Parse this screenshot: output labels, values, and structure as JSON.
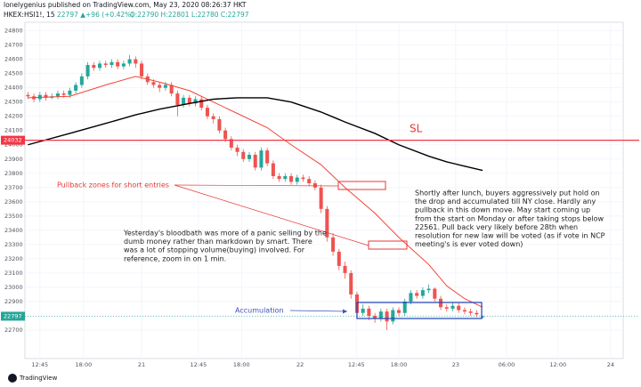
{
  "header": {
    "author": "lonelygenius published on TradingView.com, May 23, 2020 08:26:37 HKT",
    "symbol": "HKEX:HSI1!, 15",
    "change": "22797 ▲+96 (+0.42%)",
    "ohlc": "O:22790 H:22801 L:22780 C:22797"
  },
  "footer": "TradingView",
  "chart_data": {
    "type": "candlestick",
    "up_color": "#26a69a",
    "down_color": "#ef5350",
    "grid": true,
    "xlim": [
      -0.5,
      99.5
    ],
    "ylim": [
      22500,
      24860
    ],
    "xticks": [
      {
        "value": 2,
        "label": "12:45"
      },
      {
        "value": 9.3,
        "label": "18:00"
      },
      {
        "value": 19,
        "label": "21"
      },
      {
        "value": 28.5,
        "label": "12:45"
      },
      {
        "value": 35.7,
        "label": "18:00"
      },
      {
        "value": 45.5,
        "label": "22"
      },
      {
        "value": 54.9,
        "label": "12:45"
      },
      {
        "value": 62,
        "label": "18:00"
      },
      {
        "value": 71.5,
        "label": "23"
      },
      {
        "value": 80,
        "label": "06:00"
      },
      {
        "value": 88.6,
        "label": "12:00"
      },
      {
        "value": 97.4,
        "label": "24"
      }
    ],
    "yticks": [
      22700,
      22800,
      22900,
      23000,
      23100,
      23200,
      23300,
      23400,
      23500,
      23600,
      23700,
      23800,
      23900,
      24000,
      24100,
      24200,
      24300,
      24400,
      24500,
      24600,
      24700,
      24800
    ],
    "open": [
      24350,
      24340,
      24320,
      24350,
      24330,
      24340,
      24360,
      24350,
      24380,
      24420,
      24480,
      24560,
      24540,
      24570,
      24560,
      24580,
      24550,
      24570,
      24600,
      24570,
      24480,
      24440,
      24420,
      24400,
      24420,
      24360,
      24280,
      24330,
      24290,
      24320,
      24260,
      24200,
      24180,
      24100,
      24040,
      23980,
      23950,
      23900,
      23930,
      23840,
      23960,
      23870,
      23780,
      23760,
      23780,
      23740,
      23770,
      23760,
      23730,
      23700,
      23550,
      23350,
      23250,
      23150,
      23100,
      22950,
      22820,
      22850,
      22800,
      22780,
      22830,
      22760,
      22840,
      22820,
      22900,
      22960,
      22940,
      22980,
      22990,
      22920,
      22860,
      22850,
      22870,
      22840,
      22830,
      22820,
      22790
    ],
    "high": [
      24370,
      24360,
      24370,
      24370,
      24360,
      24380,
      24380,
      24400,
      24440,
      24500,
      24580,
      24580,
      24590,
      24590,
      24600,
      24600,
      24590,
      24630,
      24620,
      24590,
      24500,
      24460,
      24440,
      24440,
      24440,
      24380,
      24350,
      24350,
      24340,
      24340,
      24280,
      24220,
      24200,
      24120,
      24060,
      24000,
      23970,
      23950,
      23950,
      23980,
      23980,
      23890,
      23800,
      23800,
      23800,
      23790,
      23790,
      23780,
      23750,
      23720,
      23570,
      23380,
      23270,
      23180,
      23120,
      22970,
      22880,
      22870,
      22820,
      22850,
      22850,
      22860,
      22860,
      22920,
      22980,
      22980,
      23000,
      23020,
      23000,
      22940,
      22880,
      22890,
      22890,
      22860,
      22850,
      22840,
      22801
    ],
    "low": [
      24320,
      24300,
      24300,
      24310,
      24320,
      24320,
      24330,
      24330,
      24360,
      24400,
      24460,
      24520,
      24520,
      24540,
      24540,
      24530,
      24530,
      24550,
      24540,
      24460,
      24420,
      24400,
      24370,
      24380,
      24340,
      24200,
      24260,
      24270,
      24270,
      24240,
      24180,
      24150,
      24080,
      24020,
      23960,
      23920,
      23880,
      23880,
      23820,
      23820,
      23850,
      23760,
      23740,
      23740,
      23720,
      23720,
      23740,
      23710,
      23680,
      23520,
      23320,
      23220,
      23120,
      23060,
      22920,
      22790,
      22800,
      22770,
      22750,
      22760,
      22700,
      22740,
      22800,
      22800,
      22880,
      22920,
      22920,
      22960,
      22900,
      22840,
      22830,
      22830,
      22820,
      22810,
      22800,
      22790,
      22780
    ],
    "close": [
      24340,
      24320,
      24350,
      24330,
      24340,
      24360,
      24350,
      24380,
      24420,
      24480,
      24560,
      24540,
      24570,
      24560,
      24580,
      24550,
      24570,
      24600,
      24570,
      24480,
      24440,
      24420,
      24400,
      24420,
      24360,
      24280,
      24330,
      24290,
      24320,
      24260,
      24200,
      24180,
      24100,
      24040,
      23980,
      23950,
      23900,
      23930,
      23840,
      23960,
      23870,
      23780,
      23760,
      23780,
      23740,
      23770,
      23760,
      23730,
      23700,
      23550,
      23350,
      23250,
      23150,
      23100,
      22950,
      22820,
      22850,
      22800,
      22780,
      22830,
      22760,
      22840,
      22820,
      22900,
      22960,
      22940,
      22980,
      22990,
      22920,
      22860,
      22850,
      22870,
      22840,
      22830,
      22820,
      22810,
      22797
    ],
    "lines": [
      {
        "color": "#f44336",
        "x": [
          0,
          7,
          13,
          18,
          22,
          27,
          31,
          35,
          40,
          44,
          49,
          53,
          58,
          62,
          67,
          70,
          73,
          76
        ],
        "values": [
          24330,
          24340,
          24420,
          24480,
          24440,
          24380,
          24300,
          24220,
          24120,
          24000,
          23860,
          23700,
          23520,
          23350,
          23160,
          23010,
          22920,
          22860
        ]
      },
      {
        "color": "#000000",
        "x": [
          0,
          7,
          13,
          18,
          22,
          27,
          31,
          35,
          40,
          44,
          49,
          53,
          58,
          62,
          67,
          70,
          73,
          76
        ],
        "values": [
          24000,
          24080,
          24150,
          24210,
          24250,
          24290,
          24320,
          24330,
          24330,
          24300,
          24230,
          24160,
          24080,
          24000,
          23920,
          23880,
          23850,
          23820
        ]
      }
    ],
    "price_lines": [
      {
        "value": 24032,
        "color": "#f23645"
      },
      {
        "value": 22797,
        "color": "#26a69a"
      }
    ],
    "annotations": {
      "sl": "SL",
      "pullback": "Pullback zones for short entries",
      "accumulation": "Accumulation",
      "note_right": [
        "Shortly after lunch, buyers aggressively put hold on",
        "the drop and accumulated till NY close. Hardly any",
        "pullback in this down move. May start coming up",
        "from the start on Monday or after taking stops below",
        "22561. Pull back very likely before 28th when",
        "resolution for new law will be voted (as if vote in NCP",
        "meeting's is ever voted down)"
      ],
      "note_left": [
        "Yesterday's bloodbath was more of a panic selling by the",
        "dumb money rather than markdown by smart. There",
        "was a lot of stopping volume(buying) involved. For",
        "reference, zoom in on 1 min."
      ]
    }
  }
}
